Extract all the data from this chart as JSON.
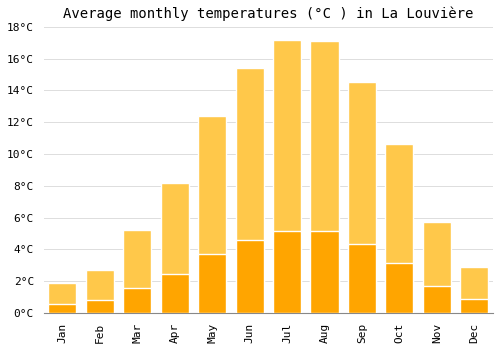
{
  "title": "Average monthly temperatures (°C ) in La Louvière",
  "months": [
    "Jan",
    "Feb",
    "Mar",
    "Apr",
    "May",
    "Jun",
    "Jul",
    "Aug",
    "Sep",
    "Oct",
    "Nov",
    "Dec"
  ],
  "values": [
    1.9,
    2.7,
    5.2,
    8.2,
    12.4,
    15.4,
    17.2,
    17.1,
    14.5,
    10.6,
    5.7,
    2.9
  ],
  "bar_color_top": "#FFC84A",
  "bar_color_bottom": "#FFA500",
  "background_color": "#FFFFFF",
  "grid_color": "#DDDDDD",
  "ylim": [
    0,
    18
  ],
  "yticks": [
    0,
    2,
    4,
    6,
    8,
    10,
    12,
    14,
    16,
    18
  ],
  "title_fontsize": 10,
  "tick_fontsize": 8,
  "font_family": "monospace"
}
